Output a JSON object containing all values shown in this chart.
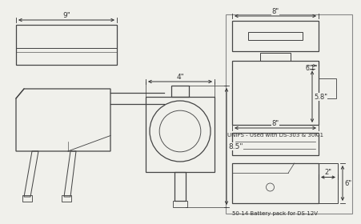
{
  "bg_color": "#f0f0eb",
  "line_color": "#444444",
  "dim_color": "#333333",
  "font_size": 6.5,
  "top_dim_9in": "9\"",
  "dim_4in": "4\"",
  "dim_85in": "8.5\"",
  "unips_dim_8in": "8\"",
  "unips_dim_61in": "6.1\"",
  "unips_dim_58in": "5.8\"",
  "unips_label": "UNIPS - Used with DS-303 & 30K-1",
  "battery_dim_8in": "8\"",
  "battery_dim_2in": "2\"",
  "battery_dim_6in": "6\"",
  "battery_label": "50-14 Battery pack for DS-12V"
}
